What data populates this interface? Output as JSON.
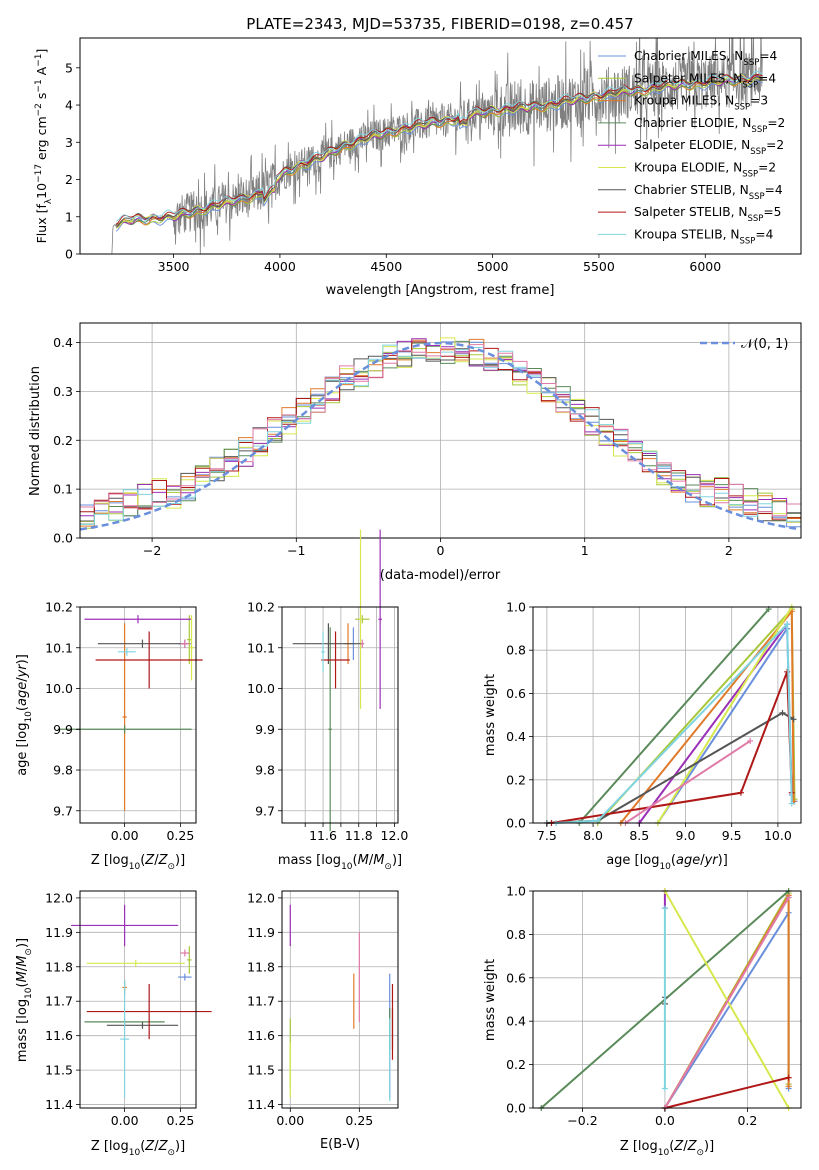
{
  "figure_title": "PLATE=2343, MJD=53735, FIBERID=0198, z=0.457",
  "colors": {
    "Chabrier MILES": "#6a8fdc",
    "Salpeter MILES": "#a8c83a",
    "Kroupa MILES": "#e07a2a",
    "Chabrier ELODIE": "#5a8a5a",
    "Salpeter ELODIE": "#9b2fb8",
    "Kroupa ELODIE": "#d6e84e",
    "Chabrier STELIB": "#555555",
    "Salpeter STELIB": "#b01818",
    "Kroupa STELIB": "#80d4e0",
    "pink": "#e07aa8",
    "gaussian": "#6a8fdc",
    "spectrum": "#808080"
  },
  "chart_data": [
    {
      "id": "spectrum",
      "type": "line",
      "xlabel": "wavelength [Angstrom, rest frame]",
      "ylabel": "Flux [f_λ 10^−17 erg cm^−2 s^−1 A^−1]",
      "xlim": [
        3060,
        6450
      ],
      "ylim": [
        0,
        5.8
      ],
      "xticks": [
        3500,
        4000,
        4500,
        5000,
        5500,
        6000
      ],
      "yticks": [
        0,
        1,
        2,
        3,
        4,
        5
      ],
      "legend": "top-right",
      "legend_entries": [
        {
          "name": "Chabrier MILES, N_SSP=4",
          "text": "Chabrier MILES, N",
          "sub": "SSP",
          "suffix": "=4",
          "key": "Chabrier MILES"
        },
        {
          "name": "Salpeter MILES, N_SSP=4",
          "text": "Salpeter MILES, N",
          "sub": "SSP",
          "suffix": "=4",
          "key": "Salpeter MILES"
        },
        {
          "name": "Kroupa MILES, N_SSP=3",
          "text": "Kroupa MILES, N",
          "sub": "SSP",
          "suffix": "=3",
          "key": "Kroupa MILES"
        },
        {
          "name": "Chabrier ELODIE, N_SSP=2",
          "text": "Chabrier ELODIE, N",
          "sub": "SSP",
          "suffix": "=2",
          "key": "Chabrier ELODIE"
        },
        {
          "name": "Salpeter ELODIE, N_SSP=2",
          "text": "Salpeter ELODIE, N",
          "sub": "SSP",
          "suffix": "=2",
          "key": "Salpeter ELODIE"
        },
        {
          "name": "Kroupa ELODIE, N_SSP=2",
          "text": "Kroupa ELODIE, N",
          "sub": "SSP",
          "suffix": "=2",
          "key": "Kroupa ELODIE"
        },
        {
          "name": "Chabrier STELIB, N_SSP=4",
          "text": "Chabrier STELIB, N",
          "sub": "SSP",
          "suffix": "=4",
          "key": "Chabrier STELIB"
        },
        {
          "name": "Salpeter STELIB, N_SSP=5",
          "text": "Salpeter STELIB, N",
          "sub": "SSP",
          "suffix": "=5",
          "key": "Salpeter STELIB"
        },
        {
          "name": "Kroupa STELIB, N_SSP=4",
          "text": "Kroupa STELIB, N",
          "sub": "SSP",
          "suffix": "=4",
          "key": "Kroupa STELIB"
        }
      ],
      "spectrum_envelope": [
        [
          3210,
          0.0
        ],
        [
          3215,
          0.75
        ],
        [
          3260,
          0.85
        ],
        [
          3300,
          0.92
        ],
        [
          3400,
          0.95
        ],
        [
          3500,
          1.0
        ],
        [
          3600,
          1.15
        ],
        [
          3700,
          1.3
        ],
        [
          3800,
          1.45
        ],
        [
          3900,
          1.6
        ],
        [
          4000,
          2.1
        ],
        [
          4100,
          2.4
        ],
        [
          4200,
          2.6
        ],
        [
          4300,
          2.9
        ],
        [
          4400,
          3.1
        ],
        [
          4500,
          3.25
        ],
        [
          4600,
          3.4
        ],
        [
          4700,
          3.5
        ],
        [
          4800,
          3.6
        ],
        [
          4900,
          3.75
        ],
        [
          5000,
          3.85
        ],
        [
          5100,
          3.9
        ],
        [
          5200,
          3.95
        ],
        [
          5300,
          4.05
        ],
        [
          5400,
          4.15
        ],
        [
          5500,
          4.25
        ],
        [
          5600,
          4.35
        ],
        [
          5700,
          4.4
        ],
        [
          5800,
          4.5
        ],
        [
          5900,
          4.55
        ],
        [
          6000,
          4.6
        ],
        [
          6100,
          4.65
        ],
        [
          6200,
          4.7
        ],
        [
          6270,
          4.75
        ]
      ]
    },
    {
      "id": "residuals",
      "type": "histogram",
      "xlabel": "(data-model)/error",
      "ylabel": "Normed distribution",
      "xlim": [
        -2.5,
        2.5
      ],
      "ylim": [
        0,
        0.44
      ],
      "xticks": [
        -2,
        -1,
        0,
        1,
        2
      ],
      "yticks": [
        0.0,
        0.1,
        0.2,
        0.3,
        0.4
      ],
      "legend": "top-right",
      "legend_label": "𝒩(0, 1)",
      "gaussian": {
        "mean": 0,
        "sigma": 1
      }
    },
    {
      "id": "age_vs_Z",
      "type": "scatter_errorbar",
      "xlabel": "Z [log10(Z/Z⊙)]",
      "ylabel": "age [log10(age/yr)]",
      "xlim": [
        -0.2,
        0.32
      ],
      "ylim": [
        9.67,
        10.2
      ],
      "xticks": [
        0.0,
        0.25
      ],
      "yticks": [
        9.7,
        9.8,
        9.9,
        10.0,
        10.1,
        10.2
      ],
      "points": [
        {
          "key": "Chabrier MILES",
          "x": 0.27,
          "xerr": 0.03,
          "y": 10.11,
          "yerr": 0.01
        },
        {
          "key": "Salpeter MILES",
          "x": 0.29,
          "xerr": 0.01,
          "y": 10.12,
          "yerr": 0.06
        },
        {
          "key": "Kroupa MILES",
          "x": 0.0,
          "xerr": 0.01,
          "y": 9.93,
          "yerr": 0.23
        },
        {
          "key": "Chabrier ELODIE",
          "x": 0.0,
          "xerr": 0.3,
          "y": 9.9,
          "yerr": 0.01
        },
        {
          "key": "Salpeter ELODIE",
          "x": 0.06,
          "xerr": 0.24,
          "y": 10.17,
          "yerr": 0.01
        },
        {
          "key": "Kroupa ELODIE",
          "x": 0.3,
          "xerr": 0.01,
          "y": 10.1,
          "yerr": 0.08
        },
        {
          "key": "Chabrier STELIB",
          "x": 0.08,
          "xerr": 0.2,
          "y": 10.11,
          "yerr": 0.01
        },
        {
          "key": "Salpeter STELIB",
          "x": 0.11,
          "xerr": 0.24,
          "y": 10.07,
          "yerr": 0.07
        },
        {
          "key": "Kroupa STELIB",
          "x": 0.01,
          "xerr": 0.04,
          "y": 10.09,
          "yerr": 0.01
        },
        {
          "key": "pink",
          "x": 0.27,
          "xerr": 0.02,
          "y": 10.11,
          "yerr": 0.01
        }
      ]
    },
    {
      "id": "age_vs_mass",
      "type": "scatter_errorbar",
      "xlabel": "mass [log10(M/M⊙)]",
      "ylabel": "",
      "xlim": [
        11.37,
        12.02
      ],
      "ylim": [
        9.67,
        10.2
      ],
      "xticks": [
        11.5,
        11.6,
        11.7,
        11.8,
        11.9,
        12.0
      ],
      "xticklabels": [
        "11.6",
        "11.8",
        "12.0"
      ],
      "yticks": [
        9.7,
        9.8,
        9.9,
        10.0,
        10.1,
        10.2
      ],
      "points": [
        {
          "key": "Chabrier MILES",
          "x": 11.77,
          "xerr": 0.01,
          "y": 10.11,
          "yerr": 0.04
        },
        {
          "key": "Salpeter MILES",
          "x": 11.82,
          "xerr": 0.04,
          "y": 10.17,
          "yerr": 0.01
        },
        {
          "key": "Kroupa MILES",
          "x": 11.74,
          "xerr": 0.02,
          "y": 10.11,
          "yerr": 0.05
        },
        {
          "key": "Chabrier ELODIE",
          "x": 11.64,
          "xerr": 0.01,
          "y": 9.9,
          "yerr": 0.25
        },
        {
          "key": "Salpeter ELODIE",
          "x": 11.92,
          "xerr": 0.01,
          "y": 10.17,
          "yerr": 0.22
        },
        {
          "key": "Kroupa ELODIE",
          "x": 11.81,
          "xerr": 0.01,
          "y": 10.17,
          "yerr": 0.22
        },
        {
          "key": "Chabrier STELIB",
          "x": 11.63,
          "xerr": 0.2,
          "y": 10.11,
          "yerr": 0.05
        },
        {
          "key": "Salpeter STELIB",
          "x": 11.67,
          "xerr": 0.08,
          "y": 10.07,
          "yerr": 0.07
        },
        {
          "key": "Kroupa STELIB",
          "x": 11.6,
          "xerr": 0.01,
          "y": 10.09,
          "yerr": 0.05
        },
        {
          "key": "pink",
          "x": 11.82,
          "xerr": 0.01,
          "y": 10.11,
          "yerr": 0.01
        }
      ]
    },
    {
      "id": "weight_vs_age",
      "type": "line",
      "xlabel": "age [log10(age/yr)]",
      "ylabel": "mass weight",
      "xlim": [
        7.35,
        10.25
      ],
      "ylim": [
        0,
        1.0
      ],
      "xticks": [
        7.5,
        8.0,
        8.5,
        9.0,
        9.5,
        10.0
      ],
      "yticks": [
        0.0,
        0.2,
        0.4,
        0.6,
        0.8,
        1.0
      ],
      "series": [
        {
          "key": "Chabrier MILES",
          "x": [
            8.7,
            10.1,
            10.15,
            10.18
          ],
          "y": [
            0.0,
            0.9,
            0.13,
            0.1
          ]
        },
        {
          "key": "Salpeter MILES",
          "x": [
            8.05,
            10.15,
            10.18
          ],
          "y": [
            0.0,
            0.99,
            0.11
          ]
        },
        {
          "key": "Kroupa MILES",
          "x": [
            8.3,
            10.15,
            10.17
          ],
          "y": [
            0.0,
            0.98,
            0.1
          ]
        },
        {
          "key": "Chabrier ELODIE",
          "x": [
            7.85,
            9.9
          ],
          "y": [
            0.0,
            0.99
          ]
        },
        {
          "key": "Salpeter ELODIE",
          "x": [
            8.5,
            10.1
          ],
          "y": [
            0.0,
            0.92
          ]
        },
        {
          "key": "Kroupa ELODIE",
          "x": [
            8.7,
            10.15
          ],
          "y": [
            0.0,
            1.0
          ]
        },
        {
          "key": "Chabrier STELIB",
          "x": [
            7.5,
            8.05,
            10.05,
            10.17
          ],
          "y": [
            0.0,
            0.01,
            0.51,
            0.48
          ]
        },
        {
          "key": "Salpeter STELIB",
          "x": [
            7.55,
            9.6,
            10.1,
            10.15
          ],
          "y": [
            0.0,
            0.14,
            0.7,
            0.14
          ]
        },
        {
          "key": "Kroupa STELIB",
          "x": [
            7.6,
            8.05,
            10.1,
            10.15
          ],
          "y": [
            0.0,
            0.01,
            0.92,
            0.09
          ]
        },
        {
          "key": "pink",
          "x": [
            8.35,
            9.7
          ],
          "y": [
            0.0,
            0.38
          ]
        }
      ]
    },
    {
      "id": "mass_vs_Z",
      "type": "scatter_errorbar",
      "xlabel": "Z [log10(Z/Z⊙)]",
      "ylabel": "mass [log10(M/M⊙)]",
      "xlim": [
        -0.2,
        0.32
      ],
      "ylim": [
        11.39,
        12.02
      ],
      "xticks": [
        0.0,
        0.25
      ],
      "yticks": [
        11.4,
        11.5,
        11.6,
        11.7,
        11.8,
        11.9,
        12.0
      ],
      "points": [
        {
          "key": "Chabrier MILES",
          "x": 0.27,
          "xerr": 0.03,
          "y": 11.77,
          "yerr": 0.01
        },
        {
          "key": "Salpeter MILES",
          "x": 0.29,
          "xerr": 0.01,
          "y": 11.82,
          "yerr": 0.04
        },
        {
          "key": "Kroupa MILES",
          "x": 0.0,
          "xerr": 0.01,
          "y": 11.74,
          "yerr": 0.02
        },
        {
          "key": "Chabrier ELODIE",
          "x": 0.0,
          "xerr": 0.18,
          "y": 11.64,
          "yerr": 0.01
        },
        {
          "key": "Salpeter ELODIE",
          "x": 0.0,
          "xerr": 0.24,
          "y": 11.92,
          "yerr": 0.06
        },
        {
          "key": "Kroupa ELODIE",
          "x": 0.05,
          "xerr": 0.22,
          "y": 11.81,
          "yerr": 0.01
        },
        {
          "key": "Chabrier STELIB",
          "x": 0.08,
          "xerr": 0.16,
          "y": 11.63,
          "yerr": 0.01
        },
        {
          "key": "Salpeter STELIB",
          "x": 0.11,
          "xerr": 0.28,
          "y": 11.67,
          "yerr": 0.08
        },
        {
          "key": "Kroupa STELIB",
          "x": 0.0,
          "xerr": 0.02,
          "y": 11.59,
          "yerr": 0.17
        },
        {
          "key": "pink",
          "x": 0.27,
          "xerr": 0.02,
          "y": 11.84,
          "yerr": 0.01
        }
      ]
    },
    {
      "id": "mass_vs_ebv",
      "type": "scatter_errorbar",
      "xlabel": "E(B-V)",
      "ylabel": "",
      "xlim": [
        -0.03,
        0.39
      ],
      "ylim": [
        11.39,
        12.02
      ],
      "xticks": [
        0.0,
        0.25
      ],
      "yticks": [
        11.4,
        11.5,
        11.6,
        11.7,
        11.8,
        11.9,
        12.0
      ],
      "points": [
        {
          "key": "Chabrier MILES",
          "x": 0.36,
          "xerr": 0.001,
          "y": 11.6,
          "yerr": 0.18
        },
        {
          "key": "Salpeter MILES",
          "x": 0.0,
          "xerr": 0.001,
          "y": 11.55,
          "yerr": 0.1
        },
        {
          "key": "Kroupa MILES",
          "x": 0.23,
          "xerr": 0.001,
          "y": 11.7,
          "yerr": 0.08
        },
        {
          "key": "Chabrier ELODIE",
          "x": 0.36,
          "xerr": 0.001,
          "y": 11.62,
          "yerr": 0.06
        },
        {
          "key": "Salpeter ELODIE",
          "x": 0.0,
          "xerr": 0.001,
          "y": 11.92,
          "yerr": 0.06
        },
        {
          "key": "Kroupa ELODIE",
          "x": 0.0,
          "xerr": 0.001,
          "y": 11.5,
          "yerr": 0.08
        },
        {
          "key": "Chabrier STELIB",
          "x": 0.37,
          "xerr": 0.001,
          "y": 11.62,
          "yerr": 0.06
        },
        {
          "key": "Salpeter STELIB",
          "x": 0.37,
          "xerr": 0.001,
          "y": 11.64,
          "yerr": 0.11
        },
        {
          "key": "Kroupa STELIB",
          "x": 0.36,
          "xerr": 0.001,
          "y": 11.53,
          "yerr": 0.12
        },
        {
          "key": "pink",
          "x": 0.25,
          "xerr": 0.001,
          "y": 11.77,
          "yerr": 0.13
        }
      ]
    },
    {
      "id": "weight_vs_Z",
      "type": "line",
      "xlabel": "Z [log10(Z/Z⊙)]",
      "ylabel": "mass weight",
      "xlim": [
        -0.32,
        0.33
      ],
      "ylim": [
        0,
        1.0
      ],
      "xticks": [
        -0.2,
        0.0,
        0.2
      ],
      "yticks": [
        0.0,
        0.2,
        0.4,
        0.6,
        0.8,
        1.0
      ],
      "series": [
        {
          "key": "Chabrier MILES",
          "x": [
            0.0,
            0.3,
            0.3
          ],
          "y": [
            0.0,
            0.9,
            0.09
          ]
        },
        {
          "key": "Salpeter MILES",
          "x": [
            0.0,
            0.3,
            0.3
          ],
          "y": [
            0.0,
            0.99,
            0.11
          ]
        },
        {
          "key": "Kroupa MILES",
          "x": [
            0.0,
            0.3,
            0.3
          ],
          "y": [
            0.0,
            0.98,
            0.1
          ]
        },
        {
          "key": "Chabrier ELODIE",
          "x": [
            -0.3,
            0.3
          ],
          "y": [
            0.0,
            1.0
          ]
        },
        {
          "key": "Salpeter ELODIE",
          "x": [
            0.0,
            0.0
          ],
          "y": [
            0.92,
            1.0
          ]
        },
        {
          "key": "Kroupa ELODIE",
          "x": [
            0.0,
            0.3
          ],
          "y": [
            1.0,
            0.0
          ]
        },
        {
          "key": "Chabrier STELIB",
          "x": [
            0.0,
            0.0
          ],
          "y": [
            0.48,
            0.51
          ]
        },
        {
          "key": "Salpeter STELIB",
          "x": [
            0.0,
            0.3
          ],
          "y": [
            0.0,
            0.14
          ]
        },
        {
          "key": "Kroupa STELIB",
          "x": [
            0.0,
            0.0
          ],
          "y": [
            0.09,
            0.92
          ]
        },
        {
          "key": "pink",
          "x": [
            0.0,
            0.3
          ],
          "y": [
            0.0,
            0.97
          ]
        }
      ]
    }
  ]
}
